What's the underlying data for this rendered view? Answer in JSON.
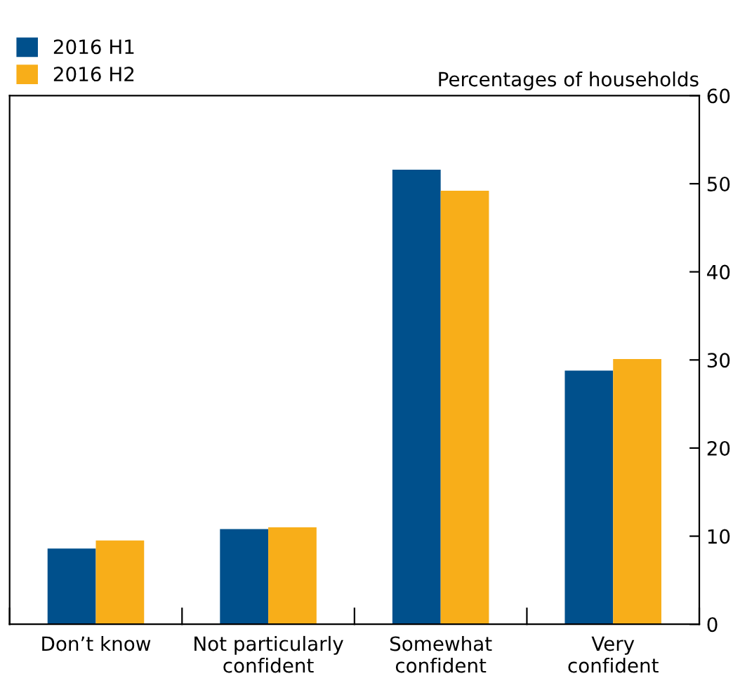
{
  "chart_data": {
    "type": "bar",
    "ylabel": "Percentages of households",
    "categories": [
      "Don’t know",
      "Not particularly\nconfident",
      "Somewhat\nconfident",
      "Very\nconfident"
    ],
    "series": [
      {
        "name": "2016 H1",
        "color": "#00508c",
        "values": [
          8.6,
          10.8,
          51.6,
          28.8
        ]
      },
      {
        "name": "2016 H2",
        "color": "#f8ae19",
        "values": [
          9.5,
          11.0,
          49.2,
          30.1
        ]
      }
    ],
    "ylim": [
      0,
      60
    ],
    "yticks": [
      0,
      10,
      20,
      30,
      40,
      50,
      60
    ],
    "grid": false,
    "legend": "top left"
  }
}
